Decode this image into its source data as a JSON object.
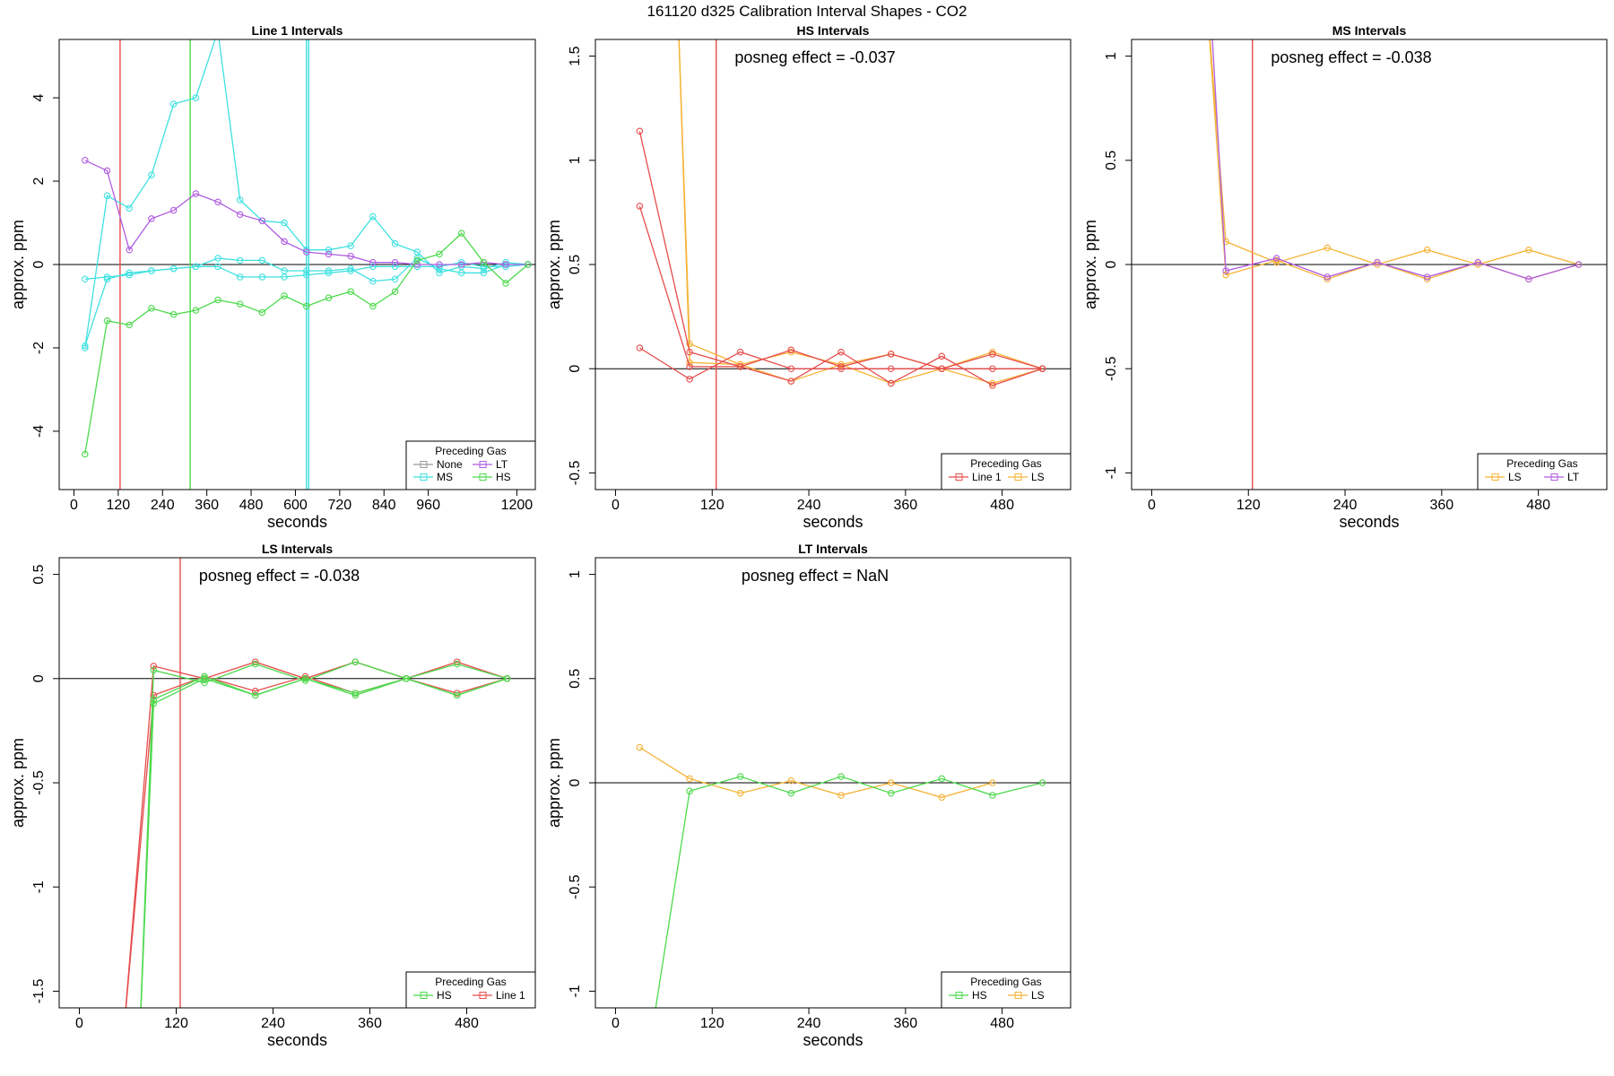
{
  "title": "161120  d325   Calibration Interval Shapes - CO2",
  "chart_data": [
    {
      "type": "line",
      "title": "Line 1 Intervals",
      "xlabel": "seconds",
      "ylabel": "approx. ppm",
      "xlim": [
        -40,
        1250
      ],
      "ylim": [
        -5.4,
        5.4
      ],
      "xticks": [
        0,
        120,
        240,
        360,
        480,
        600,
        720,
        840,
        960,
        1200
      ],
      "yticks": [
        -4,
        -2,
        0,
        2,
        4
      ],
      "annotation": "",
      "vlines": [
        {
          "x": 125,
          "color": "#e74c4c"
        },
        {
          "x": 315,
          "color": "#4cd94c"
        },
        {
          "x": 630,
          "color": "#3fe0e0"
        },
        {
          "x": 636,
          "color": "#3fe0e0"
        }
      ],
      "legend": {
        "title": "Preceding Gas",
        "position": "bottom-right",
        "columns": 2,
        "entries": [
          {
            "name": "None",
            "color": "#9a9a9a"
          },
          {
            "name": "LT",
            "color": "#b05ce0"
          },
          {
            "name": "MS",
            "color": "#3fe0e0"
          },
          {
            "name": "HS",
            "color": "#4cd94c"
          }
        ]
      },
      "series": [
        {
          "name": "MS",
          "color": "#3fe0e0",
          "x": [
            30,
            90,
            150,
            210,
            270,
            330,
            390,
            450,
            510,
            570,
            630,
            690,
            750,
            810,
            870,
            930,
            990,
            1050,
            1110,
            1170,
            1230
          ],
          "y": [
            -2.0,
            1.65,
            1.35,
            2.15,
            3.85,
            4.0,
            5.6,
            1.55,
            1.05,
            1.0,
            0.35,
            0.35,
            0.45,
            1.15,
            0.5,
            0.3,
            -0.2,
            -0.05,
            -0.1,
            0.05,
            0.0
          ]
        },
        {
          "name": "MS",
          "color": "#3fe0e0",
          "x": [
            30,
            90,
            150,
            210,
            270,
            330,
            390,
            450,
            510,
            570,
            630,
            690,
            750,
            810,
            870,
            930,
            990,
            1050,
            1110,
            1170,
            1230
          ],
          "y": [
            -0.35,
            -0.3,
            -0.25,
            -0.15,
            -0.1,
            -0.05,
            0.15,
            0.1,
            0.1,
            -0.15,
            -0.15,
            -0.15,
            -0.1,
            -0.4,
            -0.35,
            0.15,
            -0.1,
            -0.2,
            -0.2,
            0.0,
            0.0
          ]
        },
        {
          "name": "MS",
          "color": "#3fe0e0",
          "x": [
            30,
            90,
            150,
            210,
            270,
            330,
            390,
            450,
            510,
            570,
            630,
            690,
            750,
            810,
            870,
            930,
            990,
            1050,
            1110,
            1170,
            1230
          ],
          "y": [
            -1.95,
            -0.35,
            -0.2,
            -0.15,
            -0.1,
            -0.05,
            -0.05,
            -0.3,
            -0.3,
            -0.3,
            -0.25,
            -0.2,
            -0.15,
            -0.05,
            -0.05,
            -0.05,
            -0.05,
            0.05,
            -0.05,
            -0.05,
            0.0
          ]
        },
        {
          "name": "LT",
          "color": "#b05ce0",
          "x": [
            30,
            90,
            150,
            210,
            270,
            330,
            390,
            450,
            510,
            570,
            630,
            690,
            750,
            810,
            870,
            930,
            990,
            1050,
            1110,
            1170,
            1230
          ],
          "y": [
            2.5,
            2.25,
            0.35,
            1.1,
            1.3,
            1.7,
            1.5,
            1.2,
            1.05,
            0.55,
            0.3,
            0.25,
            0.2,
            0.05,
            0.05,
            0.0,
            0.0,
            0.0,
            0.05,
            0.0,
            0.0
          ]
        },
        {
          "name": "HS",
          "color": "#4cd94c",
          "x": [
            30,
            90,
            150,
            210,
            270,
            330,
            390,
            450,
            510,
            570,
            630,
            690,
            750,
            810,
            870,
            930,
            990,
            1050,
            1110,
            1170,
            1230
          ],
          "y": [
            -4.55,
            -1.35,
            -1.45,
            -1.05,
            -1.2,
            -1.1,
            -0.85,
            -0.95,
            -1.15,
            -0.75,
            -1.0,
            -0.8,
            -0.65,
            -1.0,
            -0.65,
            0.1,
            0.25,
            0.75,
            0.05,
            -0.45,
            0.0
          ]
        }
      ]
    },
    {
      "type": "line",
      "title": "HS Intervals",
      "xlabel": "seconds",
      "ylabel": "approx. ppm",
      "xlim": [
        -25,
        565
      ],
      "ylim": [
        -0.58,
        1.58
      ],
      "xticks": [
        0,
        120,
        240,
        360,
        480
      ],
      "yticks": [
        -0.5,
        0.0,
        0.5,
        1.0,
        1.5
      ],
      "annotation": "posneg effect = -0.037",
      "vlines": [
        {
          "x": 125,
          "color": "#e74c4c"
        }
      ],
      "legend": {
        "title": "Preceding Gas",
        "position": "bottom-right",
        "columns": 2,
        "entries": [
          {
            "name": "Line 1",
            "color": "#e74c4c"
          },
          {
            "name": "LS",
            "color": "#f5b335"
          }
        ]
      },
      "series": [
        {
          "name": "LS",
          "color": "#f5b335",
          "x": [
            76,
            92,
            155,
            218,
            280,
            342,
            405,
            468,
            530
          ],
          "y": [
            1.9,
            0.12,
            0.02,
            -0.06,
            0.02,
            0.07,
            0.0,
            -0.07,
            0.0
          ]
        },
        {
          "name": "LS",
          "color": "#f5b335",
          "x": [
            76,
            92,
            155,
            218,
            280,
            342,
            405,
            468,
            530
          ],
          "y": [
            1.9,
            0.03,
            0.02,
            0.08,
            0.02,
            -0.07,
            0.0,
            0.08,
            0.0
          ]
        },
        {
          "name": "Line 1",
          "color": "#e74c4c",
          "x": [
            30,
            92,
            155,
            218,
            280,
            342,
            405,
            468,
            530
          ],
          "y": [
            1.14,
            0.08,
            0.01,
            0.09,
            0.01,
            0.07,
            0.0,
            0.07,
            0.0
          ]
        },
        {
          "name": "Line 1",
          "color": "#e74c4c",
          "x": [
            30,
            92,
            155,
            218,
            280,
            342,
            405,
            468,
            530
          ],
          "y": [
            0.78,
            0.01,
            0.01,
            -0.06,
            0.08,
            -0.07,
            0.06,
            -0.08,
            0.0
          ]
        },
        {
          "name": "Line 1",
          "color": "#e74c4c",
          "x": [
            30,
            92,
            155,
            218,
            280,
            342,
            405,
            468,
            530
          ],
          "y": [
            0.1,
            -0.05,
            0.08,
            0.0,
            0.0,
            0.0,
            0.0,
            0.0,
            0.0
          ]
        }
      ]
    },
    {
      "type": "line",
      "title": "MS Intervals",
      "xlabel": "seconds",
      "ylabel": "approx. ppm",
      "xlim": [
        -25,
        565
      ],
      "ylim": [
        -1.08,
        1.08
      ],
      "xticks": [
        0,
        120,
        240,
        360,
        480
      ],
      "yticks": [
        -1.0,
        -0.5,
        0.0,
        0.5,
        1.0
      ],
      "annotation": "posneg effect = -0.038",
      "vlines": [
        {
          "x": 125,
          "color": "#e74c4c"
        }
      ],
      "legend": {
        "title": "Preceding Gas",
        "position": "bottom-right",
        "columns": 2,
        "entries": [
          {
            "name": "LS",
            "color": "#f5b335"
          },
          {
            "name": "LT",
            "color": "#b05ce0"
          }
        ]
      },
      "series": [
        {
          "name": "LS",
          "color": "#f5b335",
          "x": [
            68,
            92,
            155,
            218,
            280,
            342,
            405,
            468,
            530
          ],
          "y": [
            1.3,
            0.11,
            0.01,
            0.08,
            0.0,
            0.07,
            0.0,
            0.07,
            0.0
          ]
        },
        {
          "name": "LS",
          "color": "#f5b335",
          "x": [
            68,
            92,
            155,
            218,
            280,
            342,
            405,
            468,
            530
          ],
          "y": [
            1.3,
            -0.05,
            0.02,
            -0.07,
            0.01,
            -0.07,
            0.01,
            -0.07,
            0.0
          ]
        },
        {
          "name": "LT",
          "color": "#b05ce0",
          "x": [
            72,
            92,
            155,
            218,
            280,
            342,
            405,
            468,
            530
          ],
          "y": [
            1.3,
            -0.03,
            0.03,
            -0.06,
            0.01,
            -0.06,
            0.01,
            -0.07,
            0.0
          ]
        }
      ]
    },
    {
      "type": "line",
      "title": "LS Intervals",
      "xlabel": "seconds",
      "ylabel": "approx. ppm",
      "xlim": [
        -25,
        565
      ],
      "ylim": [
        -1.58,
        0.58
      ],
      "xticks": [
        0,
        120,
        240,
        360,
        480
      ],
      "yticks": [
        -1.5,
        -1.0,
        -0.5,
        0.0,
        0.5
      ],
      "annotation": "posneg effect = -0.038",
      "vlines": [
        {
          "x": 125,
          "color": "#e74c4c"
        }
      ],
      "legend": {
        "title": "Preceding Gas",
        "position": "bottom-right",
        "columns": 2,
        "entries": [
          {
            "name": "HS",
            "color": "#4cd94c"
          },
          {
            "name": "Line 1",
            "color": "#e74c4c"
          }
        ]
      },
      "series": [
        {
          "name": "Line 1",
          "color": "#e74c4c",
          "x": [
            55,
            92,
            155,
            218,
            280,
            342,
            405,
            468,
            530
          ],
          "y": [
            -1.7,
            0.06,
            0.0,
            0.08,
            0.0,
            0.08,
            0.0,
            0.08,
            0.0
          ]
        },
        {
          "name": "Line 1",
          "color": "#e74c4c",
          "x": [
            55,
            92,
            155,
            218,
            280,
            342,
            405,
            468,
            530
          ],
          "y": [
            -1.7,
            -0.08,
            0.01,
            -0.06,
            0.01,
            -0.07,
            0.0,
            -0.07,
            0.0
          ]
        },
        {
          "name": "HS",
          "color": "#4cd94c",
          "x": [
            75,
            92,
            155,
            218,
            280,
            342,
            405,
            468,
            530
          ],
          "y": [
            -1.7,
            0.04,
            -0.02,
            0.07,
            -0.01,
            0.08,
            0.0,
            0.07,
            0.0
          ]
        },
        {
          "name": "HS",
          "color": "#4cd94c",
          "x": [
            75,
            92,
            155,
            218,
            280,
            342,
            405,
            468,
            530
          ],
          "y": [
            -1.7,
            -0.12,
            0.0,
            -0.08,
            0.0,
            -0.08,
            0.0,
            -0.08,
            0.0
          ]
        },
        {
          "name": "HS",
          "color": "#4cd94c",
          "x": [
            75,
            92,
            155,
            218,
            280,
            342,
            405,
            468,
            530
          ],
          "y": [
            -1.7,
            -0.1,
            0.01,
            -0.08,
            0.0,
            -0.07,
            0.0,
            -0.08,
            0.0
          ]
        }
      ]
    },
    {
      "type": "line",
      "title": "LT Intervals",
      "xlabel": "seconds",
      "ylabel": "approx. ppm",
      "xlim": [
        -25,
        565
      ],
      "ylim": [
        -1.08,
        1.08
      ],
      "xticks": [
        0,
        120,
        240,
        360,
        480
      ],
      "yticks": [
        -1.0,
        -0.5,
        0.0,
        0.5,
        1.0
      ],
      "annotation": "posneg effect = NaN",
      "vlines": [],
      "legend": {
        "title": "Preceding Gas",
        "position": "bottom-right",
        "columns": 2,
        "entries": [
          {
            "name": "HS",
            "color": "#4cd94c"
          },
          {
            "name": "LS",
            "color": "#f5b335"
          }
        ]
      },
      "series": [
        {
          "name": "LS",
          "color": "#f5b335",
          "x": [
            30,
            92,
            155,
            218,
            280,
            342,
            405,
            468
          ],
          "y": [
            0.17,
            0.02,
            -0.05,
            0.01,
            -0.06,
            0.0,
            -0.07,
            0.0
          ]
        },
        {
          "name": "HS",
          "color": "#4cd94c",
          "x": [
            45,
            92,
            155,
            218,
            280,
            342,
            405,
            468,
            530
          ],
          "y": [
            -1.2,
            -0.04,
            0.03,
            -0.05,
            0.03,
            -0.05,
            0.02,
            -0.06,
            0.0
          ]
        }
      ]
    }
  ]
}
